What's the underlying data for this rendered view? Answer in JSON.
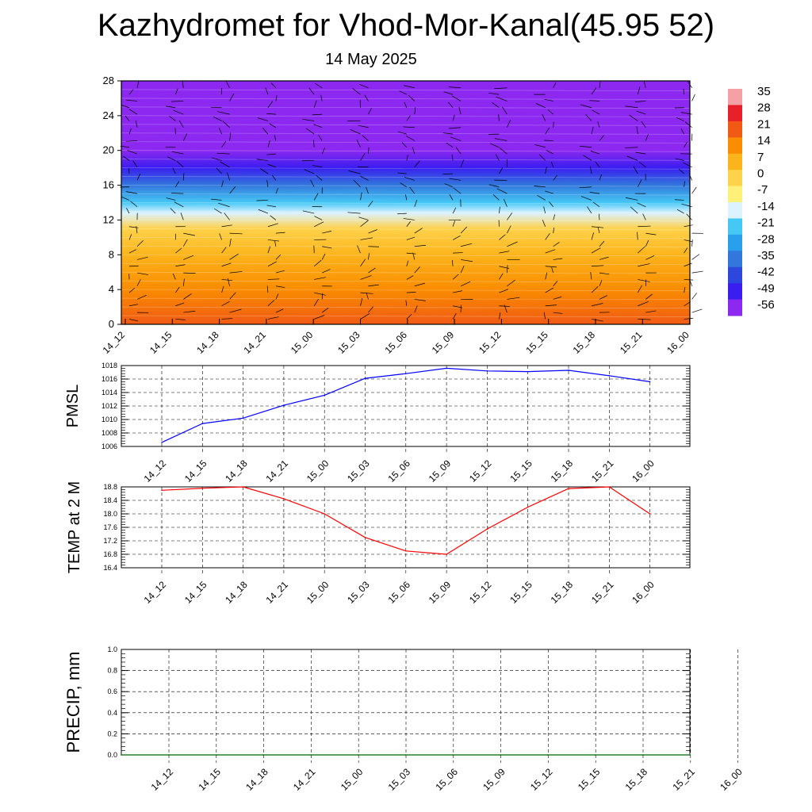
{
  "page": {
    "title": "Kazhydromet for Vhod-Mor-Kanal(45.95 52)",
    "subtitle": "14 May 2025"
  },
  "chart_data": [
    {
      "type": "heatmap",
      "description_kind": "vertical cross-section with wind barbs",
      "x_ticks": [
        "14_12",
        "14_15",
        "14_18",
        "14_21",
        "15_00",
        "15_03",
        "15_06",
        "15_09",
        "15_12",
        "15_15",
        "15_18",
        "15_21",
        "16_00"
      ],
      "y_ticks": [
        0,
        4,
        8,
        12,
        16,
        20,
        24,
        28
      ],
      "ylim": [
        0,
        28
      ],
      "colorbar": {
        "labels": [
          "35",
          "28",
          "21",
          "14",
          "7",
          "0",
          "-7",
          "-14",
          "-21",
          "-28",
          "-35",
          "-42",
          "-49",
          "-56"
        ],
        "colors": [
          "#f4a0a4",
          "#e8202a",
          "#f05a14",
          "#fa8c00",
          "#fcb41c",
          "#fed24a",
          "#fff07a",
          "#dcf2ff",
          "#46c8f5",
          "#28a0eb",
          "#3278dc",
          "#2d46dc",
          "#3a1ef0",
          "#8c28f0"
        ]
      },
      "temperature_profile": [
        {
          "height": 0,
          "value": 22
        },
        {
          "height": 4,
          "value": 18
        },
        {
          "height": 8,
          "value": 10
        },
        {
          "height": 11,
          "value": 2
        },
        {
          "height": 12.8,
          "value": -8
        },
        {
          "height": 14,
          "value": -20
        },
        {
          "height": 16,
          "value": -32
        },
        {
          "height": 18,
          "value": -45
        },
        {
          "height": 20,
          "value": -54
        },
        {
          "height": 22,
          "value": -56
        },
        {
          "height": 24,
          "value": -52
        },
        {
          "height": 25,
          "value": -60
        },
        {
          "height": 28,
          "value": -62
        }
      ]
    },
    {
      "type": "line",
      "ylabel": "PMSL",
      "categories": [
        "14_12",
        "14_15",
        "14_18",
        "14_21",
        "15_00",
        "15_03",
        "15_06",
        "15_09",
        "15_12",
        "15_15",
        "15_18",
        "15_21",
        "16_00"
      ],
      "series": [
        {
          "color": "#0000ff",
          "values": [
            1006.6,
            1009.4,
            1010.2,
            1012.1,
            1013.6,
            1016.1,
            1016.8,
            1017.6,
            1017.2,
            1017.1,
            1017.3,
            1016.5,
            1015.6
          ]
        }
      ],
      "ylim": [
        1006,
        1018
      ],
      "y_ticks": [
        1006,
        1008,
        1010,
        1012,
        1014,
        1016,
        1018
      ]
    },
    {
      "type": "line",
      "ylabel": "TEMP at 2 M",
      "categories": [
        "14_12",
        "14_15",
        "14_18",
        "14_21",
        "15_00",
        "15_03",
        "15_06",
        "15_09",
        "15_12",
        "15_15",
        "15_18",
        "15_21",
        "16_00"
      ],
      "series": [
        {
          "color": "#ff0000",
          "values": [
            18.7,
            18.76,
            18.8,
            18.45,
            18.0,
            17.3,
            16.9,
            16.8,
            17.55,
            18.2,
            18.75,
            18.8,
            18.0
          ]
        }
      ],
      "ylim": [
        16.4,
        18.8
      ],
      "y_ticks": [
        "16.4",
        "16.8",
        "17.2",
        "17.6",
        "18.0",
        "18.4",
        "18.8"
      ]
    },
    {
      "type": "line",
      "ylabel": "PRECIP, mm",
      "categories": [
        "14_12",
        "14_15",
        "14_18",
        "14_21",
        "15_00",
        "15_03",
        "15_06",
        "15_09",
        "15_12",
        "15_15",
        "15_18",
        "15_21",
        "16_00"
      ],
      "series": [
        {
          "color": "#006400",
          "values": [
            0,
            0,
            0,
            0,
            0,
            0,
            0,
            0,
            0,
            0,
            0,
            0,
            0
          ]
        }
      ],
      "ylim": [
        0,
        1
      ],
      "y_ticks": [
        "0.0",
        "0.2",
        "0.4",
        "0.6",
        "0.8",
        "1.0"
      ]
    }
  ]
}
